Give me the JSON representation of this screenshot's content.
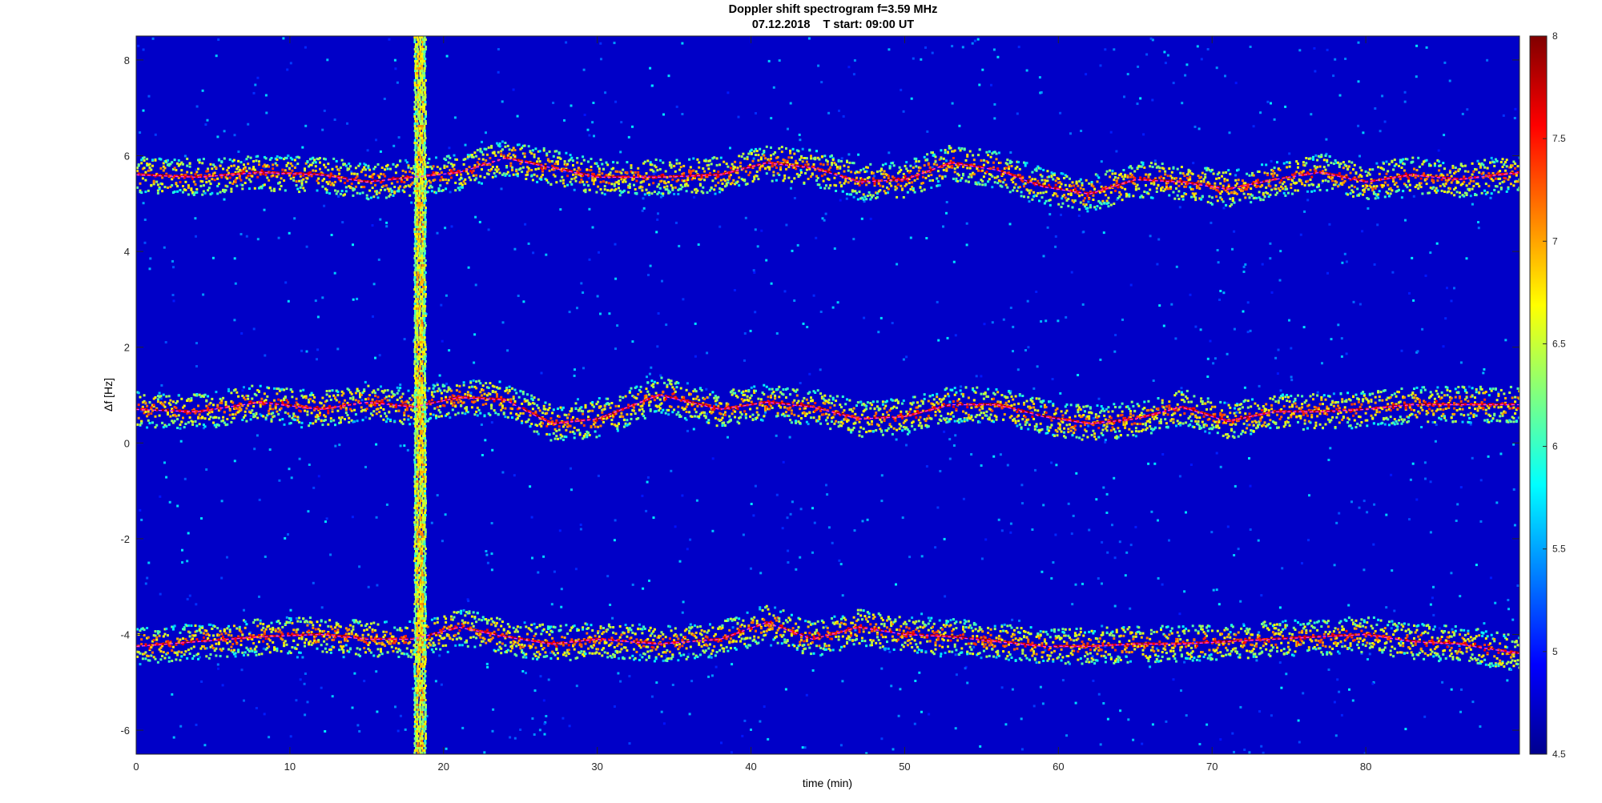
{
  "figure": {
    "title": "Doppler shift spectrogram f=3.59 MHz",
    "subtitle": "07.12.2018    T start: 09:00 UT"
  },
  "chart_data": {
    "type": "heatmap",
    "title": "Doppler shift spectrogram f=3.59 MHz",
    "subtitle": "07.12.2018    T start: 09:00 UT",
    "xlabel": "time (min)",
    "ylabel": "Δf [Hz]",
    "xlim": [
      0,
      90
    ],
    "ylim": [
      -6.5,
      8.5
    ],
    "x_ticks": [
      0,
      10,
      20,
      30,
      40,
      50,
      60,
      70,
      80
    ],
    "x_tick_labels": [
      "0",
      "10",
      "20",
      "30",
      "40",
      "50",
      "60",
      "70",
      "80"
    ],
    "y_ticks": [
      8,
      6,
      4,
      2,
      0,
      -2,
      -4,
      -6
    ],
    "y_tick_labels": [
      "8",
      "6",
      "4",
      "2",
      "0",
      "-2",
      "-4",
      "-6"
    ],
    "colorbar": {
      "colormap": "jet",
      "range": [
        4.5,
        8
      ],
      "ticks": [
        8,
        7.5,
        7,
        6.5,
        6,
        5.5,
        5,
        4.5
      ],
      "tick_labels": [
        "8",
        "7.5",
        "7",
        "6.5",
        "6",
        "5.5",
        "5",
        "4.5"
      ]
    },
    "vertical_artifact": {
      "time_min": 18.4,
      "half_width_min": 0.4
    },
    "traces": [
      {
        "band": "upper",
        "t": [
          0,
          4,
          8,
          12,
          15,
          18,
          21,
          24,
          27,
          30,
          34,
          38,
          41,
          44,
          47,
          50,
          53,
          56,
          59,
          62,
          65,
          68,
          71,
          74,
          77,
          80,
          83,
          86,
          90
        ],
        "f": [
          5.6,
          5.55,
          5.65,
          5.6,
          5.45,
          5.55,
          5.65,
          5.95,
          5.75,
          5.55,
          5.55,
          5.6,
          5.85,
          5.75,
          5.45,
          5.5,
          5.85,
          5.7,
          5.35,
          5.2,
          5.5,
          5.45,
          5.3,
          5.5,
          5.65,
          5.45,
          5.6,
          5.5,
          5.65
        ]
      },
      {
        "band": "middle",
        "t": [
          0,
          4,
          8,
          12,
          15,
          18,
          21,
          24,
          27,
          30,
          34,
          38,
          41,
          44,
          47,
          50,
          53,
          56,
          59,
          62,
          65,
          68,
          71,
          74,
          77,
          80,
          83,
          86,
          90
        ],
        "f": [
          0.7,
          0.65,
          0.85,
          0.7,
          0.85,
          0.75,
          0.95,
          0.9,
          0.4,
          0.5,
          1.0,
          0.7,
          0.85,
          0.75,
          0.5,
          0.55,
          0.8,
          0.8,
          0.55,
          0.4,
          0.5,
          0.75,
          0.45,
          0.65,
          0.65,
          0.7,
          0.8,
          0.8,
          0.8
        ]
      },
      {
        "band": "lower",
        "t": [
          0,
          4,
          8,
          12,
          15,
          18,
          21,
          24,
          27,
          30,
          34,
          38,
          41,
          44,
          47,
          50,
          53,
          56,
          59,
          62,
          65,
          68,
          71,
          74,
          77,
          80,
          83,
          86,
          90
        ],
        "f": [
          -4.25,
          -4.15,
          -4.05,
          -4.0,
          -4.1,
          -4.1,
          -3.85,
          -4.05,
          -4.2,
          -4.1,
          -4.2,
          -4.1,
          -3.75,
          -4.1,
          -3.85,
          -4.0,
          -4.05,
          -4.15,
          -4.25,
          -4.25,
          -4.2,
          -4.2,
          -4.15,
          -4.1,
          -4.05,
          -4.0,
          -4.15,
          -4.2,
          -4.4
        ]
      }
    ]
  }
}
